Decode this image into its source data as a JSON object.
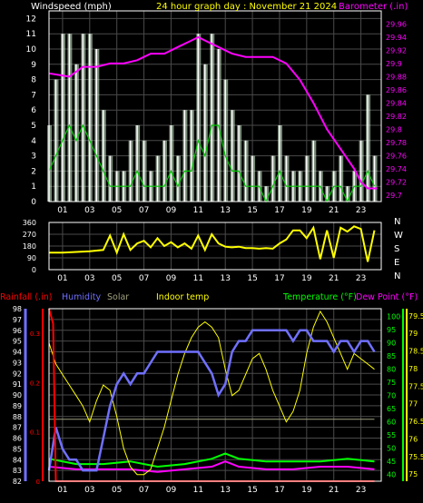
{
  "colors": {
    "background": "#000000",
    "grid": "#4a4a4a",
    "frame": "#ffffff",
    "text": "#ffffff",
    "title": "#ffff00",
    "wind_avg": "#00c800",
    "wind_gust": "#ffffff",
    "wind_fill": "#d8f8d8",
    "barometer": "#ff00ff",
    "direction": "#ffff00",
    "rain": "#ff0000",
    "humidity": "#7070ff",
    "solar": "#a0a080",
    "indoor": "#ffff00",
    "temperature": "#00ff00",
    "dewpoint": "#ff00ff",
    "temp_axis": "#00ff00",
    "dew_axis": "#ffff00"
  },
  "chart_data": [
    {
      "type": "line",
      "name": "wind-barometer",
      "title": "24 hour graph day : November 21 2024",
      "ylabel": "Windspeed (mph)",
      "y2label": "Barometer (.in)",
      "x_ticks": [
        "01",
        "03",
        "05",
        "07",
        "09",
        "11",
        "13",
        "15",
        "17",
        "19",
        "21",
        "23"
      ],
      "xlim": [
        0,
        24.5
      ],
      "ylim": [
        0,
        12.5
      ],
      "y_ticks": [
        0,
        1,
        2,
        3,
        4,
        5,
        6,
        7,
        8,
        9,
        10,
        11,
        12
      ],
      "y2lim": [
        29.69,
        29.98
      ],
      "y2_ticks": [
        "29.7",
        "29.72",
        "29.74",
        "29.76",
        "29.78",
        "29.8",
        "29.82",
        "29.84",
        "29.86",
        "29.88",
        "29.9",
        "29.92",
        "29.94",
        "29.96"
      ],
      "y2_tick_values": [
        29.7,
        29.72,
        29.74,
        29.76,
        29.78,
        29.8,
        29.82,
        29.84,
        29.86,
        29.88,
        29.9,
        29.92,
        29.94,
        29.96
      ],
      "series": [
        {
          "key": "barometer",
          "x": [
            0,
            1.5,
            2.5,
            3.5,
            4.5,
            5.5,
            6.5,
            7.5,
            8.5,
            9.5,
            10.5,
            11,
            11.5,
            12.5,
            13.5,
            14.5,
            15.5,
            16.5,
            17.5,
            18.5,
            19.5,
            20,
            20.5,
            21.5,
            22.5,
            23,
            23.5,
            24.2
          ],
          "y": [
            29.885,
            29.88,
            29.895,
            29.895,
            29.9,
            29.9,
            29.905,
            29.915,
            29.915,
            29.925,
            29.935,
            29.94,
            29.935,
            29.925,
            29.915,
            29.91,
            29.91,
            29.91,
            29.9,
            29.875,
            29.84,
            29.82,
            29.8,
            29.77,
            29.74,
            29.72,
            29.71,
            29.71
          ]
        },
        {
          "key": "wind_gust",
          "x": [
            0,
            0.5,
            1,
            1.5,
            2,
            2.5,
            3,
            3.5,
            4,
            4.5,
            5,
            5.5,
            6,
            6.5,
            7,
            7.5,
            8,
            8.5,
            9,
            9.5,
            10,
            10.5,
            11,
            11.5,
            12,
            12.5,
            13,
            13.5,
            14,
            14.5,
            15,
            15.5,
            16,
            16.5,
            17,
            17.5,
            18,
            18.5,
            19,
            19.5,
            20,
            20.5,
            21,
            21.5,
            22,
            22.5,
            23,
            23.5,
            24
          ],
          "y": [
            5,
            8,
            11,
            11,
            9,
            11,
            11,
            10,
            6,
            3,
            2,
            2,
            4,
            5,
            4,
            2,
            3,
            4,
            5,
            3,
            6,
            6,
            11,
            9,
            11,
            10,
            8,
            6,
            5,
            4,
            3,
            2,
            1,
            3,
            5,
            3,
            2,
            2,
            3,
            4,
            2,
            1,
            2,
            3,
            1,
            2,
            4,
            7,
            3
          ]
        },
        {
          "key": "wind_avg",
          "x": [
            0,
            0.5,
            1,
            1.5,
            2,
            2.5,
            3,
            3.5,
            4,
            4.5,
            5,
            5.5,
            6,
            6.5,
            7,
            7.5,
            8,
            8.5,
            9,
            9.5,
            10,
            10.5,
            11,
            11.5,
            12,
            12.5,
            13,
            13.5,
            14,
            14.5,
            15,
            15.5,
            16,
            16.5,
            17,
            17.5,
            18,
            18.5,
            19,
            19.5,
            20,
            20.5,
            21,
            21.5,
            22,
            22.5,
            23,
            23.5,
            24
          ],
          "y": [
            2,
            3,
            4,
            5,
            4,
            5,
            4,
            3,
            2,
            1,
            1,
            1,
            1,
            2,
            1,
            1,
            1,
            1,
            2,
            1,
            2,
            2,
            4,
            3,
            5,
            5,
            3,
            2,
            2,
            1,
            1,
            1,
            0,
            1,
            2,
            1,
            1,
            1,
            1,
            1,
            1,
            0,
            1,
            1,
            0,
            1,
            1,
            2,
            1
          ]
        }
      ]
    },
    {
      "type": "line",
      "name": "wind-direction",
      "x_ticks": [
        "01",
        "03",
        "05",
        "07",
        "09",
        "11",
        "13",
        "15",
        "17",
        "19",
        "21",
        "23"
      ],
      "xlim": [
        0,
        24.5
      ],
      "ylim": [
        0,
        360
      ],
      "y_ticks": [
        "0",
        "90",
        "180",
        "270",
        "360"
      ],
      "y_tick_values": [
        0,
        90,
        180,
        270,
        360
      ],
      "compass_labels": [
        "N",
        "W",
        "S",
        "E",
        "N"
      ],
      "series": [
        {
          "key": "direction",
          "x": [
            0,
            1,
            2,
            3,
            4,
            4.5,
            5,
            5.5,
            6,
            6.5,
            7,
            7.5,
            8,
            8.5,
            9,
            9.5,
            10,
            10.5,
            11,
            11.5,
            12,
            12.5,
            13,
            13.5,
            14,
            14.5,
            15,
            15.5,
            16,
            16.5,
            17,
            17.5,
            18,
            18.5,
            19,
            19.5,
            20,
            20.5,
            21,
            21.5,
            22,
            22.5,
            23,
            23.5,
            24
          ],
          "y": [
            130,
            130,
            135,
            140,
            150,
            260,
            130,
            270,
            150,
            200,
            220,
            170,
            240,
            180,
            210,
            170,
            200,
            160,
            260,
            150,
            270,
            200,
            175,
            170,
            175,
            165,
            165,
            160,
            165,
            160,
            200,
            230,
            300,
            300,
            240,
            320,
            80,
            300,
            90,
            320,
            290,
            330,
            310,
            60,
            300
          ]
        }
      ]
    },
    {
      "type": "line",
      "name": "temp-humidity",
      "legend": [
        "Rainfall (.in)",
        "Humidity",
        "Solar",
        "Indoor temp",
        "Temperature (°F)",
        "Dew Point (°F)"
      ],
      "x_ticks": [
        "01",
        "03",
        "05",
        "07",
        "09",
        "11",
        "13",
        "15",
        "17",
        "19",
        "21",
        "23"
      ],
      "xlim": [
        0,
        24.5
      ],
      "humidity_lim": [
        82,
        98
      ],
      "humidity_ticks": [
        82,
        83,
        84,
        85,
        86,
        87,
        88,
        89,
        90,
        91,
        92,
        93,
        94,
        95,
        96,
        97,
        98
      ],
      "rain_lim": [
        0,
        0.35
      ],
      "rain_ticks": [
        "0",
        "0.1",
        "0.2",
        "0.3"
      ],
      "rain_tick_values": [
        0,
        0.1,
        0.2,
        0.3
      ],
      "temp_lim": [
        37.5,
        103
      ],
      "temp_ticks": [
        40,
        45,
        50,
        55,
        60,
        65,
        70,
        75,
        80,
        85,
        90,
        95,
        100
      ],
      "dew_lim": [
        74.8,
        79.7
      ],
      "dew_ticks": [
        "75",
        "75.5",
        "76",
        "76.5",
        "77",
        "77.5",
        "78",
        "78.5",
        "79",
        "79.5"
      ],
      "dew_tick_values": [
        75,
        75.5,
        76,
        76.5,
        77,
        77.5,
        78,
        78.5,
        79,
        79.5
      ],
      "series": [
        {
          "key": "humidity",
          "x": [
            0,
            0.5,
            1,
            1.5,
            2,
            2.5,
            3,
            3.5,
            4,
            4.5,
            5,
            5.5,
            6,
            6.5,
            7,
            7.5,
            8,
            8.5,
            9,
            9.5,
            10,
            10.5,
            11,
            11.5,
            12,
            12.5,
            13,
            13.5,
            14,
            14.5,
            15,
            15.5,
            16,
            16.5,
            17,
            17.5,
            18,
            18.5,
            19,
            19.5,
            20,
            20.5,
            21,
            21.5,
            22,
            22.5,
            23,
            23.5,
            24
          ],
          "y": [
            83,
            87,
            85,
            84,
            84,
            83,
            83,
            83,
            86,
            89,
            91,
            92,
            91,
            92,
            92,
            93,
            94,
            94,
            94,
            94,
            94,
            94,
            94,
            93,
            92,
            90,
            91,
            94,
            95,
            95,
            96,
            96,
            96,
            96,
            96,
            96,
            95,
            96,
            96,
            95,
            95,
            95,
            94,
            95,
            95,
            94,
            95,
            95,
            94
          ]
        },
        {
          "key": "indoor",
          "x": [
            0,
            0.5,
            1,
            1.5,
            2,
            2.5,
            3,
            3.5,
            4,
            4.5,
            5,
            5.5,
            6,
            6.5,
            7,
            7.5,
            8,
            8.5,
            9,
            9.5,
            10,
            10.5,
            11,
            11.5,
            12,
            12.5,
            13,
            13.5,
            14,
            14.5,
            15,
            15.5,
            16,
            16.5,
            17,
            17.5,
            18,
            18.5,
            19,
            19.5,
            20,
            20.5,
            21,
            21.5,
            22,
            22.5,
            23,
            23.5,
            24
          ],
          "yscale": "temp",
          "y": [
            90,
            82,
            78,
            74,
            70,
            66,
            60,
            68,
            74,
            72,
            62,
            50,
            43,
            40,
            40,
            42,
            50,
            58,
            68,
            78,
            86,
            92,
            96,
            98,
            96,
            92,
            80,
            70,
            72,
            78,
            84,
            86,
            80,
            72,
            66,
            60,
            64,
            72,
            86,
            96,
            102,
            98,
            92,
            86,
            80,
            86,
            84,
            82,
            80
          ]
        },
        {
          "key": "solar",
          "x": [
            0,
            4,
            8,
            12,
            16,
            20,
            24
          ],
          "yscale": "temp",
          "y": [
            61,
            61,
            61,
            61,
            61,
            61,
            61
          ]
        },
        {
          "key": "temperature",
          "x": [
            0,
            2,
            4,
            6,
            8,
            10,
            12,
            13,
            14,
            16,
            18,
            20,
            22,
            24
          ],
          "yscale": "temp",
          "y": [
            46,
            44,
            44,
            45,
            43,
            44,
            46,
            48,
            46,
            45,
            45,
            45,
            46,
            45
          ]
        },
        {
          "key": "dewpoint",
          "x": [
            0,
            2,
            4,
            6,
            8,
            10,
            12,
            13,
            14,
            16,
            18,
            20,
            22,
            24
          ],
          "yscale": "temp",
          "y": [
            43,
            42,
            42,
            42,
            41,
            42,
            43,
            45,
            43,
            42,
            42,
            43,
            43,
            42
          ]
        },
        {
          "key": "rain",
          "x": [
            0,
            0.3,
            0.5,
            24
          ],
          "yscale": "rain",
          "y": [
            0.35,
            0.32,
            0,
            0
          ]
        }
      ]
    }
  ]
}
